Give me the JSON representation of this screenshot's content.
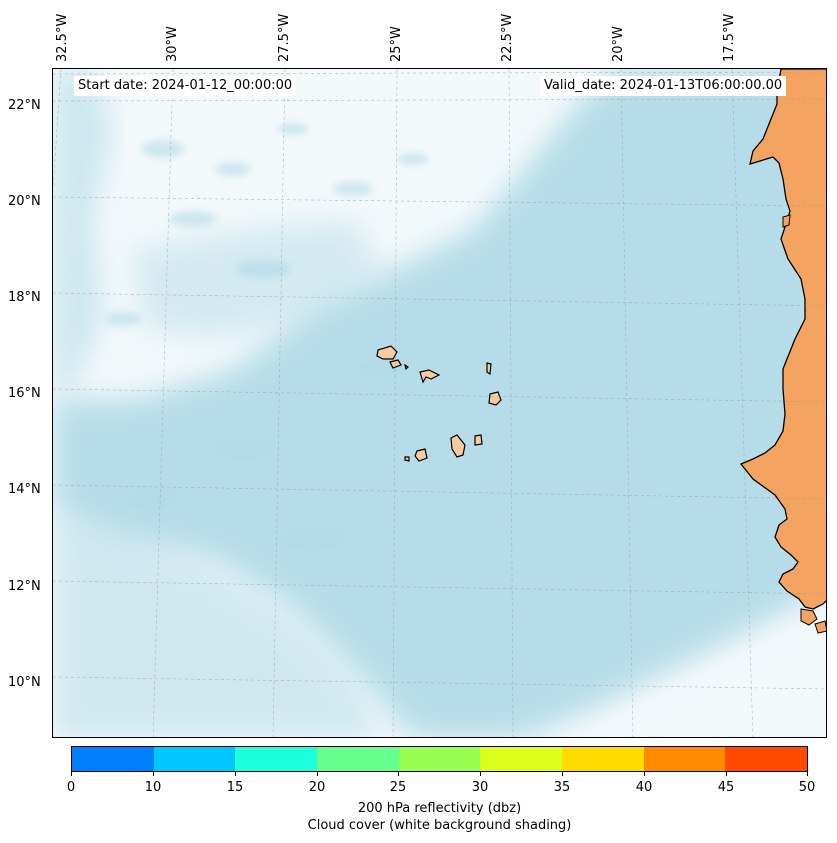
{
  "map": {
    "lon_labels": [
      "32.5°W",
      "30°W",
      "27.5°W",
      "25°W",
      "22.5°W",
      "20°W",
      "17.5°W"
    ],
    "lat_labels": [
      "22°N",
      "20°N",
      "18°N",
      "16°N",
      "14°N",
      "12°N",
      "10°N"
    ],
    "start_date": "Start date: 2024-01-12_00:00:00",
    "valid_date": "Valid_date: 2024-01-13T06:00:00.00",
    "colors": {
      "land": "#f4a460",
      "island": "#f8caa0",
      "cloud": "#add8e6",
      "ocean_background": "#f3f9fb"
    }
  },
  "colorbar": {
    "ticks": [
      "0",
      "10",
      "15",
      "20",
      "25",
      "30",
      "35",
      "40",
      "45",
      "50"
    ],
    "colors": [
      "#007fff",
      "#00c8ff",
      "#1effdc",
      "#64ff8c",
      "#96ff50",
      "#dcff1e",
      "#ffdc00",
      "#ff8c00",
      "#ff4b00"
    ],
    "label": "200 hPa reflectivity (dbz)",
    "sublabel": "Cloud cover (white background shading)"
  }
}
